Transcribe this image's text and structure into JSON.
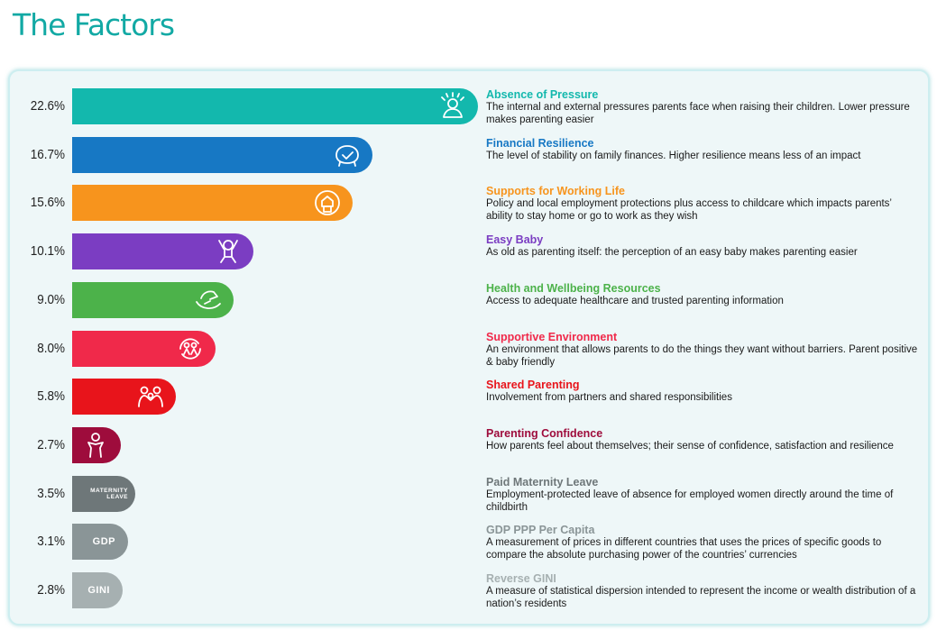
{
  "title": "The Factors",
  "chart_data": {
    "type": "bar",
    "orientation": "horizontal",
    "xlim": [
      0,
      22.6
    ],
    "unit": "%",
    "grid": false,
    "bars": [
      {
        "name": "Absence of Pressure",
        "value": 22.6,
        "label": "22.6%",
        "color": "#13b8ad",
        "desc": "The internal and external pressures parents face when raising their children. Lower pressure makes parenting easier",
        "icon": "person-with-aura-icon",
        "icon_text": ""
      },
      {
        "name": "Financial Resilience",
        "value": 16.7,
        "label": "16.7%",
        "color": "#1778c4",
        "desc": "The level of stability on family finances. Higher resilience means less of an impact",
        "icon": "piggy-bank-check-icon",
        "icon_text": ""
      },
      {
        "name": "Supports for Working Life",
        "value": 15.6,
        "label": "15.6%",
        "color": "#f7941d",
        "desc": "Policy and local employment protections plus access to childcare which impacts parents’ ability to stay home or go to work as they wish",
        "icon": "home-work-balance-icon",
        "icon_text": ""
      },
      {
        "name": "Easy Baby",
        "value": 10.1,
        "label": "10.1%",
        "color": "#7b3dc2",
        "desc": "As old as parenting itself: the perception of an easy baby makes parenting easier",
        "icon": "happy-baby-icon",
        "icon_text": ""
      },
      {
        "name": "Health and Wellbeing Resources",
        "value": 9.0,
        "label": "9.0%",
        "color": "#4cb24a",
        "desc": "Access to adequate healthcare and trusted parenting information",
        "icon": "caring-hand-icon",
        "icon_text": ""
      },
      {
        "name": "Supportive Environment",
        "value": 8.0,
        "label": "8.0%",
        "color": "#f0294a",
        "desc": "An environment that allows parents to do the things they want without barriers. Parent positive & baby friendly",
        "icon": "family-circle-icon",
        "icon_text": ""
      },
      {
        "name": "Shared Parenting",
        "value": 5.8,
        "label": "5.8%",
        "color": "#e8141b",
        "desc": "Involvement from partners and shared responsibilities",
        "icon": "parents-with-child-icon",
        "icon_text": ""
      },
      {
        "name": "Parenting Confidence",
        "value": 2.7,
        "label": "2.7%",
        "color": "#9e0c3c",
        "desc": "How parents feel about themselves; their sense of confidence, satisfaction and resilience",
        "icon": "confident-person-icon",
        "icon_text": ""
      },
      {
        "name": "Paid Maternity Leave",
        "value": 3.5,
        "label": "3.5%",
        "color": "#6e7779",
        "desc": "Employment-protected leave of absence for employed women directly around the time of childbirth",
        "icon": "",
        "icon_text": "MATERNITY LEAVE"
      },
      {
        "name": "GDP PPP Per Capita",
        "value": 3.1,
        "label": "3.1%",
        "color": "#8a9597",
        "desc": "A measurement of prices in different countries that uses the prices of specific goods to compare the absolute purchasing power of the countries’ currencies",
        "icon": "",
        "icon_text": "GDP"
      },
      {
        "name": "Reverse GINI",
        "value": 2.8,
        "label": "2.8%",
        "color": "#a6b0b1",
        "desc": "A measure of statistical dispersion intended to represent the income or wealth distribution of a nation’s residents",
        "icon": "",
        "icon_text": "GINI"
      }
    ]
  }
}
